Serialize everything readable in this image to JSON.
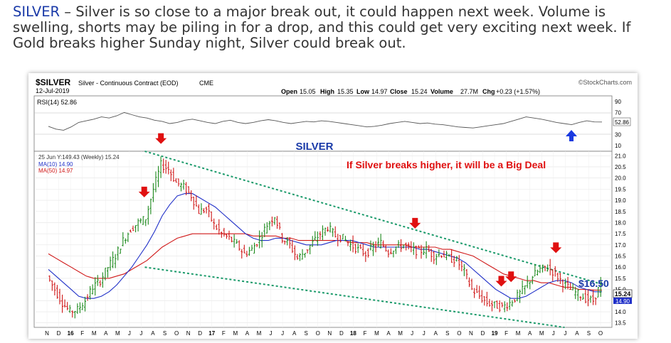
{
  "article": {
    "ticker_label": "SILVER",
    "text": " – Silver is so close to a major break out, it could happen next week.  Volume is swelling, shorts may be piling in for a drop, and this could get very exciting next week.  If Gold breaks higher Sunday night, Silver could break out."
  },
  "chart_header": {
    "symbol": "$SILVER",
    "name": "Silver - Continuous Contract (EOD)",
    "exchange": "CME",
    "date": "12-Jul-2019",
    "source": "©StockCharts.com",
    "open_label": "Open",
    "open": "15.05",
    "high_label": "High",
    "high": "15.35",
    "low_label": "Low",
    "low": "14.97",
    "close_label": "Close",
    "close": "15.24",
    "volume_label": "Volume",
    "volume": "27.7M",
    "chg_label": "Chg",
    "chg": "+0.23 (+1.57%)"
  },
  "rsi_panel": {
    "label": "RSI(14) 52.86",
    "ticks": [
      "90",
      "70",
      "30",
      "10"
    ],
    "current": "52.86",
    "title": "SILVER"
  },
  "price_panel": {
    "legend_weekly": "25 Jun Y:149.43 (Weekly) 15.24",
    "legend_ma10": "MA(10) 14.90",
    "legend_ma50": "MA(50) 14.97",
    "annotation": "If Silver breaks higher, it will be a Big Deal",
    "price_callout": "$16.50",
    "last_close": "15.24",
    "ma_value": "14.90",
    "colors": {
      "up": "#1e8a1e",
      "down": "#d01818",
      "ma10": "#2030c8",
      "ma50": "#d01818",
      "trendline": "#1a9a6a",
      "annotation": "#e01010",
      "callout": "#1a3aa8"
    }
  },
  "chart_data": {
    "type": "candlestick",
    "y_ticks": [
      "21.0",
      "20.5",
      "20.0",
      "19.5",
      "19.0",
      "18.5",
      "18.0",
      "17.5",
      "17.0",
      "16.5",
      "16.0",
      "15.5",
      "15.0",
      "14.5",
      "14.0",
      "13.5"
    ],
    "ylim": [
      13.3,
      21.2
    ],
    "rsi_ylim": [
      0,
      100
    ],
    "x_labels": [
      "N",
      "D",
      "16",
      "F",
      "M",
      "A",
      "M",
      "J",
      "J",
      "A",
      "S",
      "O",
      "N",
      "D",
      "17",
      "F",
      "M",
      "A",
      "M",
      "J",
      "J",
      "A",
      "S",
      "O",
      "N",
      "D",
      "18",
      "F",
      "M",
      "A",
      "M",
      "J",
      "J",
      "A",
      "S",
      "O",
      "N",
      "D",
      "19",
      "F",
      "M",
      "A",
      "M",
      "J",
      "J",
      "A",
      "S",
      "O"
    ],
    "x_bold": [
      "16",
      "17",
      "18",
      "19"
    ],
    "closes": [
      15.6,
      15.0,
      14.4,
      14.0,
      14.1,
      14.5,
      15.1,
      15.4,
      16.0,
      16.5,
      17.2,
      17.7,
      18.0,
      18.2,
      19.5,
      20.6,
      20.4,
      19.8,
      19.6,
      19.2,
      18.5,
      18.6,
      17.9,
      17.5,
      17.3,
      17.0,
      16.6,
      16.8,
      17.3,
      17.9,
      18.3,
      17.3,
      17.0,
      16.4,
      16.7,
      17.1,
      17.5,
      17.8,
      17.4,
      17.3,
      17.0,
      16.8,
      16.6,
      16.9,
      17.1,
      16.7,
      16.9,
      17.0,
      16.8,
      16.7,
      16.8,
      16.5,
      16.6,
      16.4,
      16.3,
      15.8,
      15.0,
      14.7,
      14.4,
      14.3,
      14.2,
      14.4,
      14.7,
      15.1,
      15.6,
      15.9,
      16.0,
      15.7,
      15.3,
      15.0,
      14.8,
      14.6,
      14.5,
      15.24
    ],
    "ma10": [
      15.9,
      15.6,
      15.3,
      15.0,
      14.7,
      14.6,
      14.6,
      14.7,
      14.9,
      15.2,
      15.6,
      16.0,
      16.5,
      17.0,
      17.6,
      18.3,
      18.8,
      19.2,
      19.3,
      19.3,
      19.1,
      18.9,
      18.7,
      18.4,
      18.1,
      17.8,
      17.5,
      17.3,
      17.2,
      17.2,
      17.3,
      17.3,
      17.2,
      17.1,
      17.0,
      17.0,
      17.0,
      17.1,
      17.2,
      17.2,
      17.2,
      17.1,
      17.0,
      16.9,
      16.9,
      16.9,
      16.9,
      16.9,
      16.9,
      16.8,
      16.8,
      16.7,
      16.6,
      16.5,
      16.4,
      16.2,
      15.9,
      15.6,
      15.3,
      15.0,
      14.8,
      14.6,
      14.6,
      14.7,
      14.9,
      15.1,
      15.3,
      15.4,
      15.4,
      15.3,
      15.1,
      15.0,
      14.9,
      14.9
    ],
    "ma50": [
      16.6,
      16.4,
      16.2,
      16.0,
      15.8,
      15.6,
      15.5,
      15.5,
      15.5,
      15.6,
      15.7,
      15.9,
      16.1,
      16.3,
      16.6,
      16.9,
      17.1,
      17.3,
      17.4,
      17.5,
      17.5,
      17.5,
      17.5,
      17.5,
      17.5,
      17.5,
      17.5,
      17.4,
      17.4,
      17.4,
      17.4,
      17.3,
      17.3,
      17.2,
      17.2,
      17.2,
      17.2,
      17.2,
      17.2,
      17.2,
      17.1,
      17.1,
      17.1,
      17.0,
      17.0,
      17.0,
      17.0,
      17.0,
      16.9,
      16.9,
      16.9,
      16.9,
      16.8,
      16.8,
      16.7,
      16.6,
      16.5,
      16.3,
      16.1,
      15.9,
      15.7,
      15.6,
      15.5,
      15.4,
      15.4,
      15.3,
      15.3,
      15.2,
      15.1,
      15.1,
      15.0,
      15.0,
      14.97,
      14.97
    ],
    "rsi": [
      45,
      40,
      38,
      44,
      52,
      55,
      58,
      62,
      60,
      64,
      70,
      66,
      62,
      60,
      56,
      54,
      50,
      52,
      56,
      58,
      55,
      52,
      50,
      54,
      56,
      52,
      50,
      52,
      55,
      57,
      55,
      52,
      50,
      52,
      54,
      53,
      55,
      54,
      52,
      50,
      48,
      46,
      44,
      45,
      47,
      50,
      52,
      54,
      52,
      50,
      51,
      49,
      48,
      46,
      44,
      43,
      42,
      44,
      46,
      48,
      50,
      54,
      58,
      62,
      60,
      58,
      55,
      52,
      50,
      48,
      52,
      55,
      53,
      52.86
    ],
    "resistance_line": {
      "start": [
        0.19,
        21.2
      ],
      "end": [
        0.99,
        15.2
      ]
    },
    "support_line": {
      "start": [
        0.19,
        16.0
      ],
      "end": [
        0.92,
        13.3
      ]
    },
    "arrow_marks_x": [
      0.189,
      0.218,
      0.66,
      0.81,
      0.827,
      0.905
    ]
  }
}
